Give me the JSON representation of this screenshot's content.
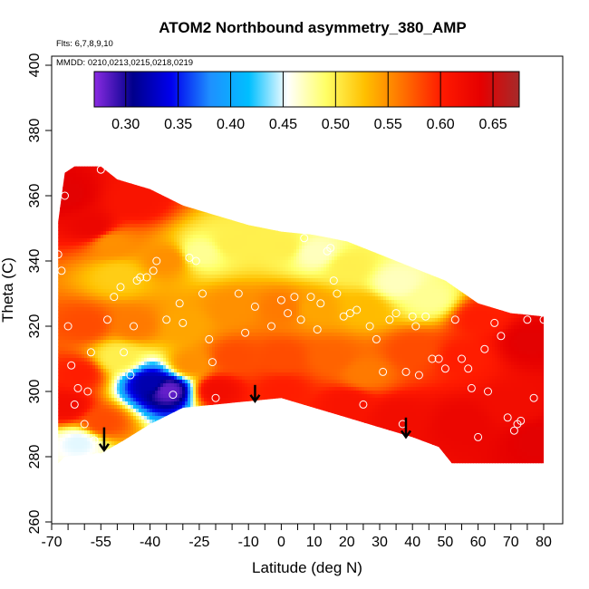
{
  "chart_data": {
    "type": "heatmap",
    "title": "ATOM2 Northbound asymmetry_380_AMP",
    "flights_note": "Flts: 6,7,8,9,10",
    "dates_note": "MMDD: 0210,0213,0215,0218,0219",
    "xlabel": "Latitude (deg N)",
    "ylabel": "Theta (C)",
    "xlim": [
      -70,
      80
    ],
    "ylim": [
      260,
      400
    ],
    "x_ticks_labeled": [
      -70,
      -55,
      -40,
      -25,
      -10,
      0,
      10,
      20,
      30,
      40,
      50,
      60,
      70,
      80
    ],
    "x_ticks_minor": [
      -65,
      -60,
      -50,
      -45,
      -35,
      -30,
      -20,
      -15,
      -5,
      5,
      15,
      25,
      35,
      45,
      55,
      65,
      75
    ],
    "y_ticks": [
      260,
      280,
      300,
      320,
      340,
      360,
      380,
      400
    ],
    "colorbar": {
      "range": [
        0.27,
        0.675
      ],
      "tick_values": [
        0.3,
        0.35,
        0.4,
        0.45,
        0.5,
        0.55,
        0.6,
        0.65
      ],
      "tick_labels": [
        "0.30",
        "0.35",
        "0.40",
        "0.45",
        "0.50",
        "0.55",
        "0.60",
        "0.65"
      ],
      "color_stops": [
        "#8a2be2",
        "#00008b",
        "#0000ee",
        "#1e90ff",
        "#00bfff",
        "#ffffff",
        "#ffff66",
        "#ffc000",
        "#ff7000",
        "#ff1a00",
        "#e60000",
        "#a52a2a"
      ]
    },
    "data_top_boundary": [
      [
        -68,
        352
      ],
      [
        -66,
        367
      ],
      [
        -63,
        369
      ],
      [
        -55,
        369
      ],
      [
        -50,
        365
      ],
      [
        -40,
        362
      ],
      [
        -30,
        357
      ],
      [
        -20,
        354
      ],
      [
        -10,
        351
      ],
      [
        0,
        349
      ],
      [
        10,
        348
      ],
      [
        20,
        346
      ],
      [
        30,
        342
      ],
      [
        40,
        338
      ],
      [
        50,
        334
      ],
      [
        60,
        327
      ],
      [
        70,
        324
      ],
      [
        80,
        323
      ]
    ],
    "data_bottom_boundary": [
      [
        -68,
        278
      ],
      [
        -66,
        280
      ],
      [
        -55,
        281
      ],
      [
        -48,
        285
      ],
      [
        -40,
        290
      ],
      [
        -30,
        295
      ],
      [
        -20,
        296
      ],
      [
        0,
        298
      ],
      [
        10,
        295
      ],
      [
        20,
        292
      ],
      [
        30,
        289
      ],
      [
        40,
        286
      ],
      [
        48,
        283
      ],
      [
        52,
        278
      ],
      [
        80,
        278
      ]
    ],
    "value_field": [
      {
        "lat": -66,
        "theta": 360,
        "value": 0.64
      },
      {
        "lat": -58,
        "theta": 350,
        "value": 0.63
      },
      {
        "lat": -45,
        "theta": 358,
        "value": 0.61
      },
      {
        "lat": -35,
        "theta": 340,
        "value": 0.55
      },
      {
        "lat": -50,
        "theta": 335,
        "value": 0.52
      },
      {
        "lat": -25,
        "theta": 342,
        "value": 0.48
      },
      {
        "lat": -15,
        "theta": 345,
        "value": 0.5
      },
      {
        "lat": 0,
        "theta": 344,
        "value": 0.5
      },
      {
        "lat": 10,
        "theta": 342,
        "value": 0.47
      },
      {
        "lat": 20,
        "theta": 338,
        "value": 0.5
      },
      {
        "lat": 35,
        "theta": 333,
        "value": 0.47
      },
      {
        "lat": 45,
        "theta": 328,
        "value": 0.48
      },
      {
        "lat": 60,
        "theta": 322,
        "value": 0.6
      },
      {
        "lat": 75,
        "theta": 315,
        "value": 0.64
      },
      {
        "lat": -60,
        "theta": 320,
        "value": 0.58
      },
      {
        "lat": -45,
        "theta": 320,
        "value": 0.56
      },
      {
        "lat": -30,
        "theta": 320,
        "value": 0.54
      },
      {
        "lat": -15,
        "theta": 325,
        "value": 0.55
      },
      {
        "lat": 0,
        "theta": 325,
        "value": 0.56
      },
      {
        "lat": 10,
        "theta": 325,
        "value": 0.54
      },
      {
        "lat": 25,
        "theta": 325,
        "value": 0.53
      },
      {
        "lat": 40,
        "theta": 312,
        "value": 0.58
      },
      {
        "lat": 55,
        "theta": 310,
        "value": 0.6
      },
      {
        "lat": -62,
        "theta": 305,
        "value": 0.6
      },
      {
        "lat": -50,
        "theta": 310,
        "value": 0.5
      },
      {
        "lat": -40,
        "theta": 302,
        "value": 0.32
      },
      {
        "lat": -35,
        "theta": 300,
        "value": 0.28
      },
      {
        "lat": -28,
        "theta": 308,
        "value": 0.55
      },
      {
        "lat": -15,
        "theta": 310,
        "value": 0.58
      },
      {
        "lat": 0,
        "theta": 310,
        "value": 0.58
      },
      {
        "lat": 15,
        "theta": 310,
        "value": 0.57
      },
      {
        "lat": 25,
        "theta": 305,
        "value": 0.56
      },
      {
        "lat": -20,
        "theta": 300,
        "value": 0.62
      },
      {
        "lat": 0,
        "theta": 300,
        "value": 0.6
      },
      {
        "lat": 20,
        "theta": 296,
        "value": 0.61
      },
      {
        "lat": 35,
        "theta": 292,
        "value": 0.62
      },
      {
        "lat": 55,
        "theta": 290,
        "value": 0.63
      },
      {
        "lat": 70,
        "theta": 295,
        "value": 0.62
      },
      {
        "lat": 78,
        "theta": 285,
        "value": 0.64
      },
      {
        "lat": -62,
        "theta": 284,
        "value": 0.45
      },
      {
        "lat": -66,
        "theta": 295,
        "value": 0.62
      },
      {
        "lat": -55,
        "theta": 290,
        "value": 0.58
      },
      {
        "lat": -52,
        "theta": 345,
        "value": 0.55
      }
    ],
    "sample_points": [
      [
        -68,
        342
      ],
      [
        -67,
        337
      ],
      [
        -66,
        360
      ],
      [
        -65,
        320
      ],
      [
        -64,
        308
      ],
      [
        -63,
        296
      ],
      [
        -62,
        301
      ],
      [
        -60,
        290
      ],
      [
        -59,
        300
      ],
      [
        -58,
        312
      ],
      [
        -57,
        285
      ],
      [
        -56,
        280
      ],
      [
        -55,
        368
      ],
      [
        -53,
        322
      ],
      [
        -51,
        329
      ],
      [
        -49,
        332
      ],
      [
        -48,
        312
      ],
      [
        -46,
        305
      ],
      [
        -45,
        320
      ],
      [
        -44,
        334
      ],
      [
        -43,
        335
      ],
      [
        -41,
        335
      ],
      [
        -39,
        337
      ],
      [
        -38,
        340
      ],
      [
        -35,
        322
      ],
      [
        -33,
        299
      ],
      [
        -31,
        327
      ],
      [
        -30,
        321
      ],
      [
        -28,
        341
      ],
      [
        -26,
        340
      ],
      [
        -24,
        330
      ],
      [
        -22,
        316
      ],
      [
        -21,
        309
      ],
      [
        -20,
        298
      ],
      [
        -13,
        330
      ],
      [
        -11,
        318
      ],
      [
        -8,
        326
      ],
      [
        -5,
        296
      ],
      [
        -3,
        320
      ],
      [
        0,
        328
      ],
      [
        2,
        324
      ],
      [
        4,
        329
      ],
      [
        6,
        322
      ],
      [
        7,
        347
      ],
      [
        9,
        329
      ],
      [
        11,
        319
      ],
      [
        12,
        327
      ],
      [
        14,
        343
      ],
      [
        15,
        344
      ],
      [
        16,
        334
      ],
      [
        17,
        330
      ],
      [
        19,
        323
      ],
      [
        21,
        324
      ],
      [
        23,
        325
      ],
      [
        25,
        296
      ],
      [
        27,
        320
      ],
      [
        29,
        316
      ],
      [
        31,
        306
      ],
      [
        33,
        322
      ],
      [
        35,
        324
      ],
      [
        37,
        290
      ],
      [
        38,
        306
      ],
      [
        40,
        323
      ],
      [
        41,
        320
      ],
      [
        42,
        305
      ],
      [
        44,
        323
      ],
      [
        46,
        310
      ],
      [
        48,
        310
      ],
      [
        50,
        307
      ],
      [
        53,
        322
      ],
      [
        55,
        310
      ],
      [
        57,
        307
      ],
      [
        58,
        301
      ],
      [
        60,
        286
      ],
      [
        62,
        313
      ],
      [
        63,
        300
      ],
      [
        65,
        321
      ],
      [
        67,
        317
      ],
      [
        69,
        292
      ],
      [
        71,
        288
      ],
      [
        72,
        290
      ],
      [
        73,
        291
      ],
      [
        75,
        322
      ],
      [
        77,
        298
      ],
      [
        80,
        322
      ]
    ],
    "arrow_markers": [
      {
        "lat": -54,
        "theta_from": 289,
        "theta_to": 282
      },
      {
        "lat": -8,
        "theta_from": 302,
        "theta_to": 297
      },
      {
        "lat": 38,
        "theta_from": 292,
        "theta_to": 286
      }
    ]
  }
}
